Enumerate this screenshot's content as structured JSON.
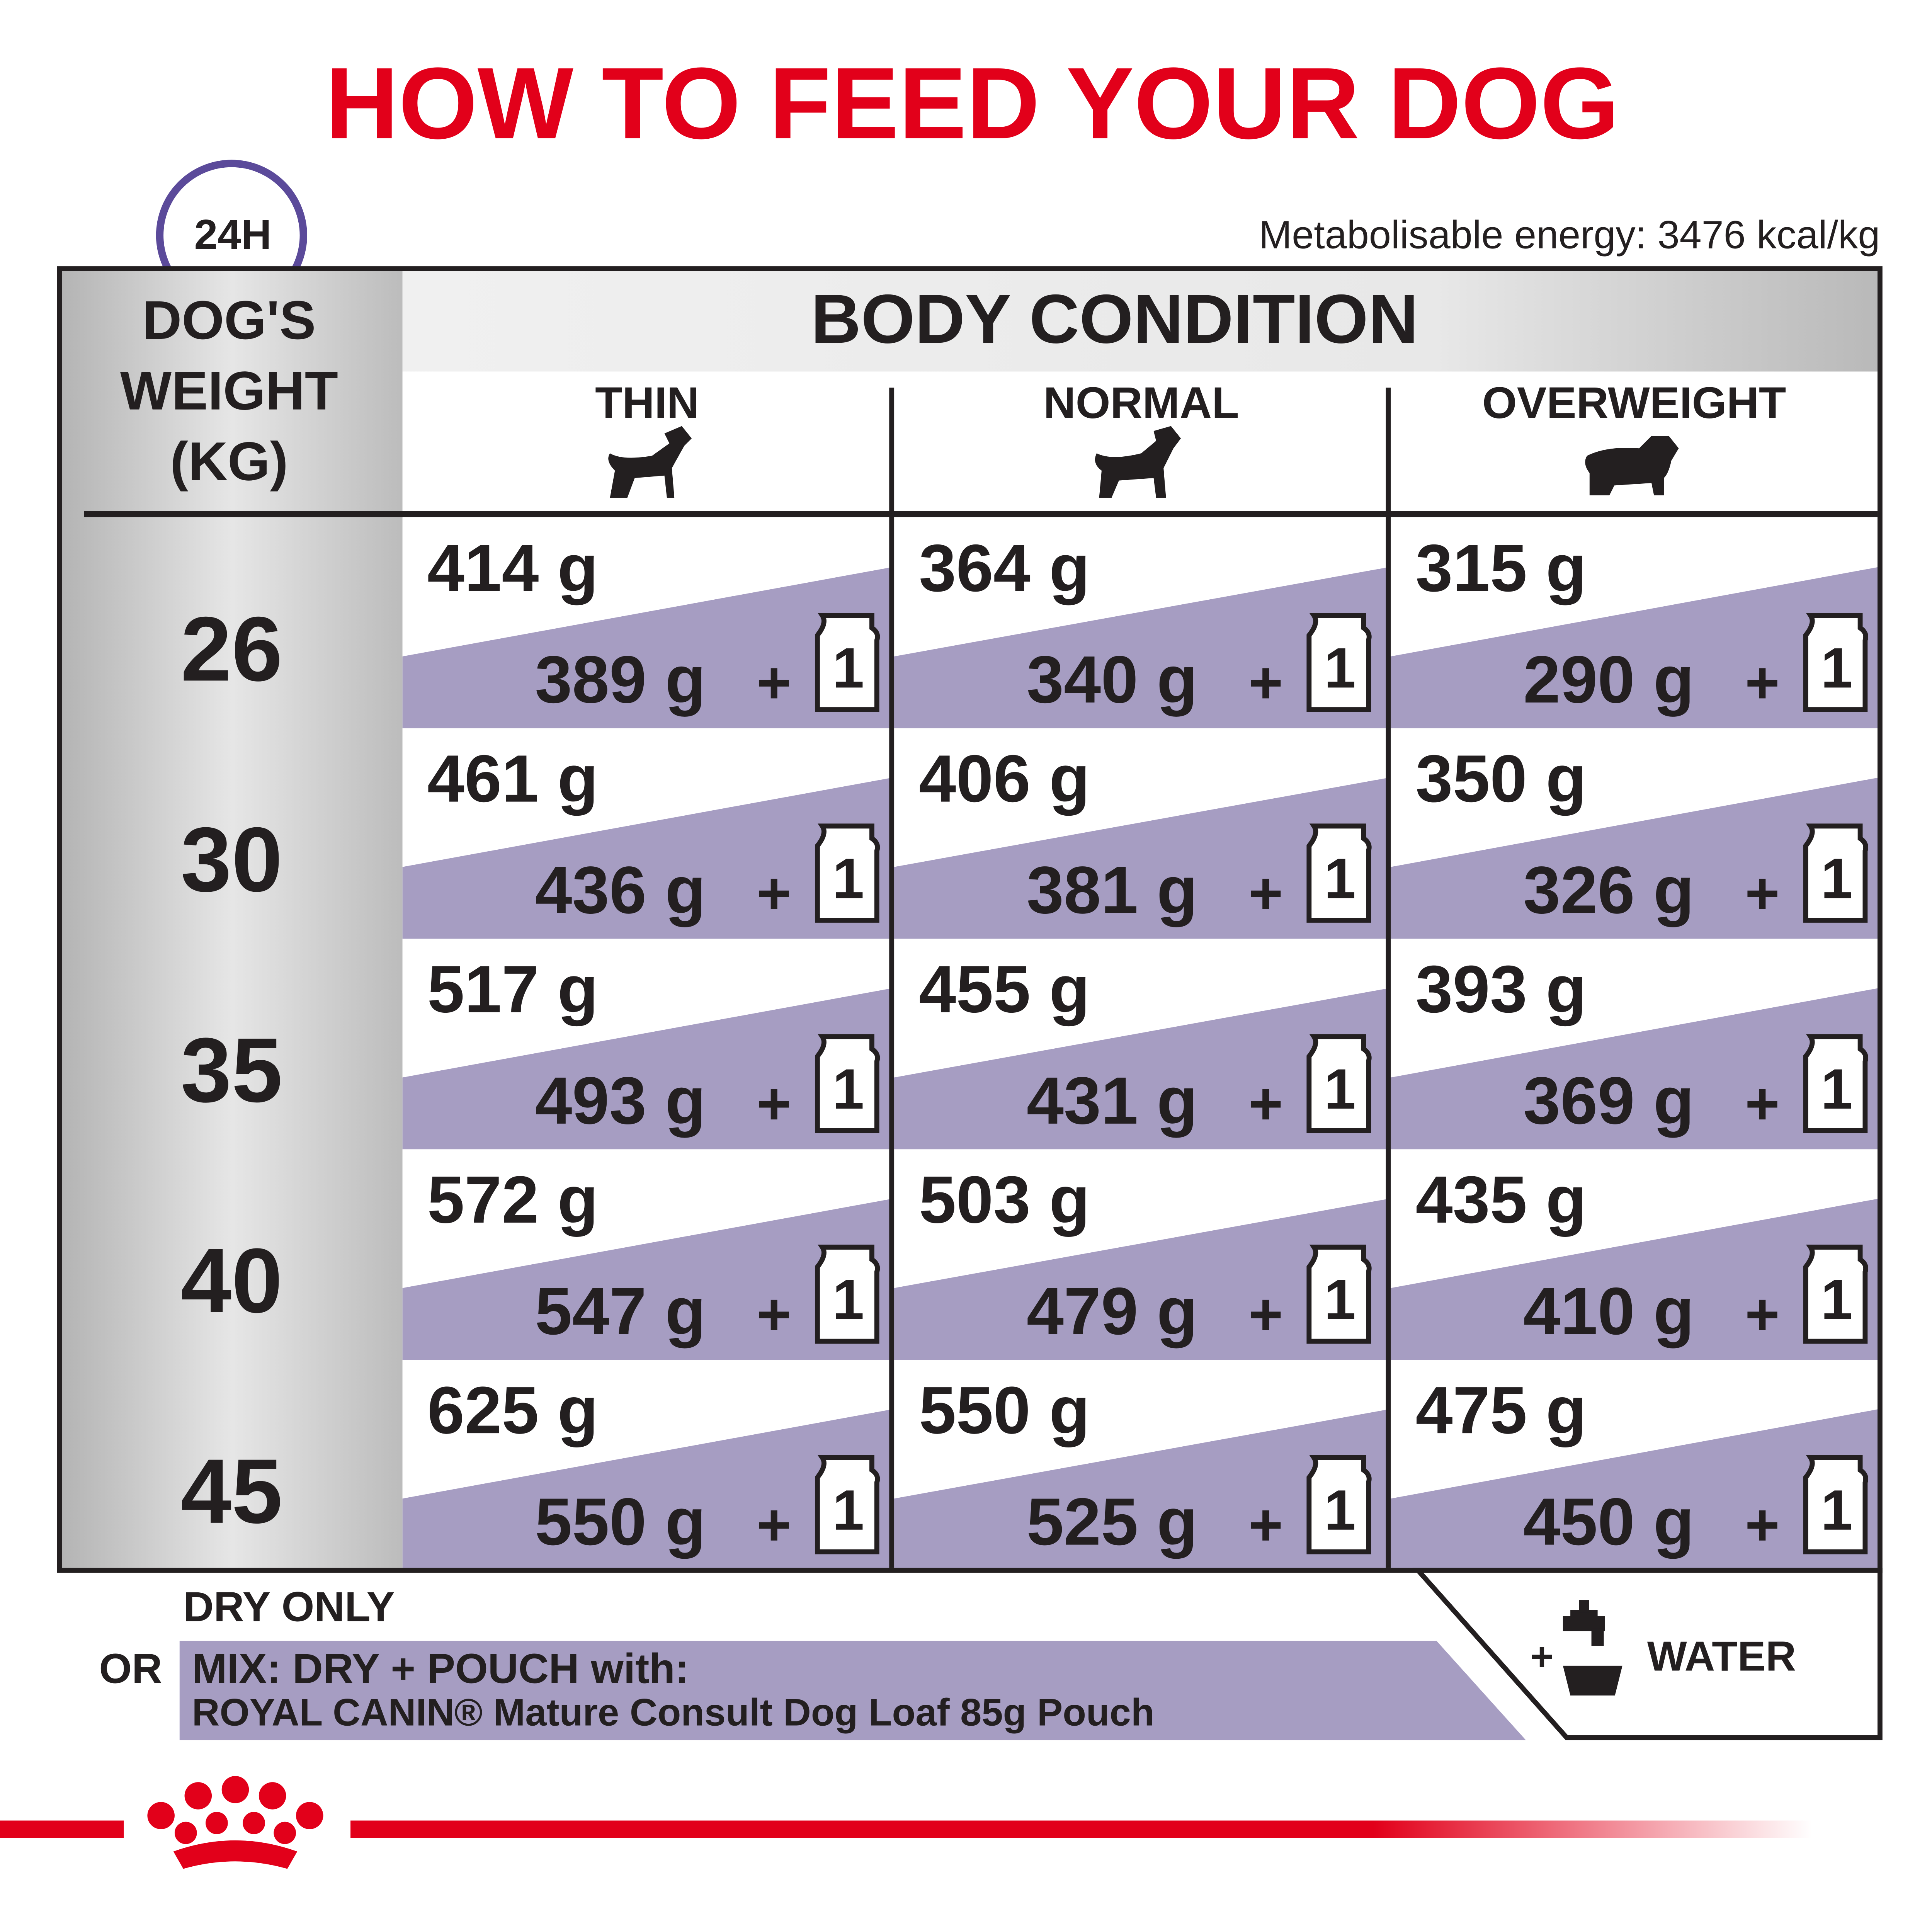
{
  "header": {
    "title": "HOW TO FEED YOUR DOG",
    "badge": "24H",
    "energy": "Metabolisable energy: 3476 kcal/kg"
  },
  "table": {
    "weight_header": [
      "DOG'S",
      "WEIGHT",
      "(KG)"
    ],
    "condition_header": "BODY CONDITION",
    "columns": [
      "THIN",
      "NORMAL",
      "OVERWEIGHT"
    ],
    "plus": "+",
    "pouch_count": "1",
    "rows": [
      {
        "weight": "26",
        "cells": [
          {
            "dry": "414 g",
            "mix": "389 g"
          },
          {
            "dry": "364 g",
            "mix": "340 g"
          },
          {
            "dry": "315 g",
            "mix": "290 g"
          }
        ]
      },
      {
        "weight": "30",
        "cells": [
          {
            "dry": "461 g",
            "mix": "436 g"
          },
          {
            "dry": "406 g",
            "mix": "381 g"
          },
          {
            "dry": "350 g",
            "mix": "326 g"
          }
        ]
      },
      {
        "weight": "35",
        "cells": [
          {
            "dry": "517 g",
            "mix": "493 g"
          },
          {
            "dry": "455 g",
            "mix": "431 g"
          },
          {
            "dry": "393 g",
            "mix": "369 g"
          }
        ]
      },
      {
        "weight": "40",
        "cells": [
          {
            "dry": "572 g",
            "mix": "547 g"
          },
          {
            "dry": "503 g",
            "mix": "479 g"
          },
          {
            "dry": "435 g",
            "mix": "410 g"
          }
        ]
      },
      {
        "weight": "45",
        "cells": [
          {
            "dry": "625 g",
            "mix": "550 g"
          },
          {
            "dry": "550 g",
            "mix": "525 g"
          },
          {
            "dry": "475 g",
            "mix": "450 g"
          }
        ]
      }
    ]
  },
  "footer": {
    "dry_only": "DRY ONLY",
    "or": "OR",
    "mix": "MIX: DRY + POUCH with:",
    "pouch": "ROYAL CANIN® Mature Consult Dog Loaf 85g Pouch",
    "plus": "+",
    "water": "WATER"
  }
}
